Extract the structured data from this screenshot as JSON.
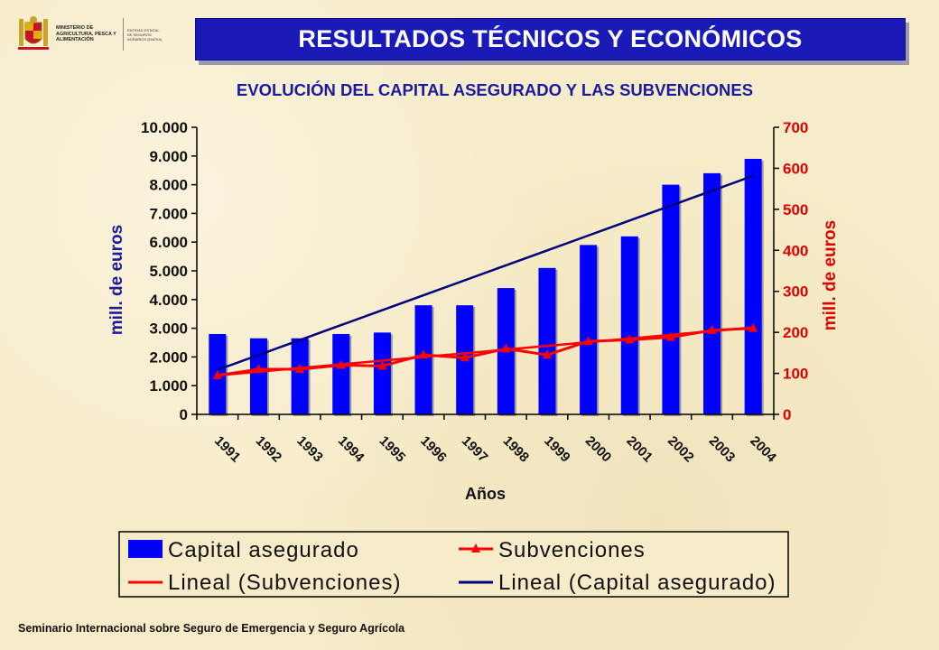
{
  "header": {
    "ministry_text": "Ministerio de Agricultura, Pesca y Alimentación",
    "entity_text": "Entidad Estatal de Seguros Agrarios (ENESA)",
    "title": "RESULTADOS TÉCNICOS Y ECONÓMICOS"
  },
  "chart_data": {
    "type": "bar",
    "title": "EVOLUCIÓN DEL CAPITAL ASEGURADO Y LAS SUBVENCIONES",
    "xlabel": "Años",
    "ylabel": "mill. de euros",
    "y2label": "mill. de euros",
    "categories": [
      "1991",
      "1992",
      "1993",
      "1994",
      "1995",
      "1996",
      "1997",
      "1998",
      "1999",
      "2000",
      "2001",
      "2002",
      "2003",
      "2004"
    ],
    "ylim": [
      0,
      10000
    ],
    "yticks": [
      "0",
      "1.000",
      "2.000",
      "3.000",
      "4.000",
      "5.000",
      "6.000",
      "7.000",
      "8.000",
      "9.000",
      "10.000"
    ],
    "y2lim": [
      0,
      700
    ],
    "y2ticks": [
      "0",
      "100",
      "200",
      "300",
      "400",
      "500",
      "600",
      "700"
    ],
    "series": [
      {
        "name": "Capital asegurado",
        "type": "bar",
        "axis": "left",
        "color": "#0000ff",
        "values": [
          2800,
          2650,
          2650,
          2800,
          2850,
          3800,
          3800,
          4400,
          5100,
          5900,
          6200,
          8000,
          8400,
          8900
        ]
      },
      {
        "name": "Subvenciones",
        "type": "line",
        "axis": "right",
        "color": "#ff0000",
        "values": [
          95,
          110,
          110,
          120,
          118,
          145,
          138,
          160,
          145,
          178,
          182,
          188,
          205,
          210
        ]
      },
      {
        "name": "Lineal (Subvenciones)",
        "type": "trend",
        "axis": "right",
        "color": "#ff0000",
        "values": [
          95,
          104,
          113,
          122,
          131,
          140,
          149,
          158,
          167,
          176,
          185,
          194,
          203,
          212
        ]
      },
      {
        "name": "Lineal (Capital asegurado)",
        "type": "trend",
        "axis": "left",
        "color": "#000080",
        "values": [
          1550,
          2070,
          2590,
          3110,
          3630,
          4150,
          4670,
          5190,
          5710,
          6230,
          6750,
          7270,
          7790,
          8310
        ]
      }
    ],
    "legend": [
      "Capital asegurado",
      "Subvenciones",
      "Lineal (Subvenciones)",
      "Lineal (Capital asegurado)"
    ],
    "legend_position": "bottom",
    "grid": false
  },
  "footer": {
    "text": "Seminario Internacional sobre Seguro de Emergencia y Seguro Agrícola"
  }
}
